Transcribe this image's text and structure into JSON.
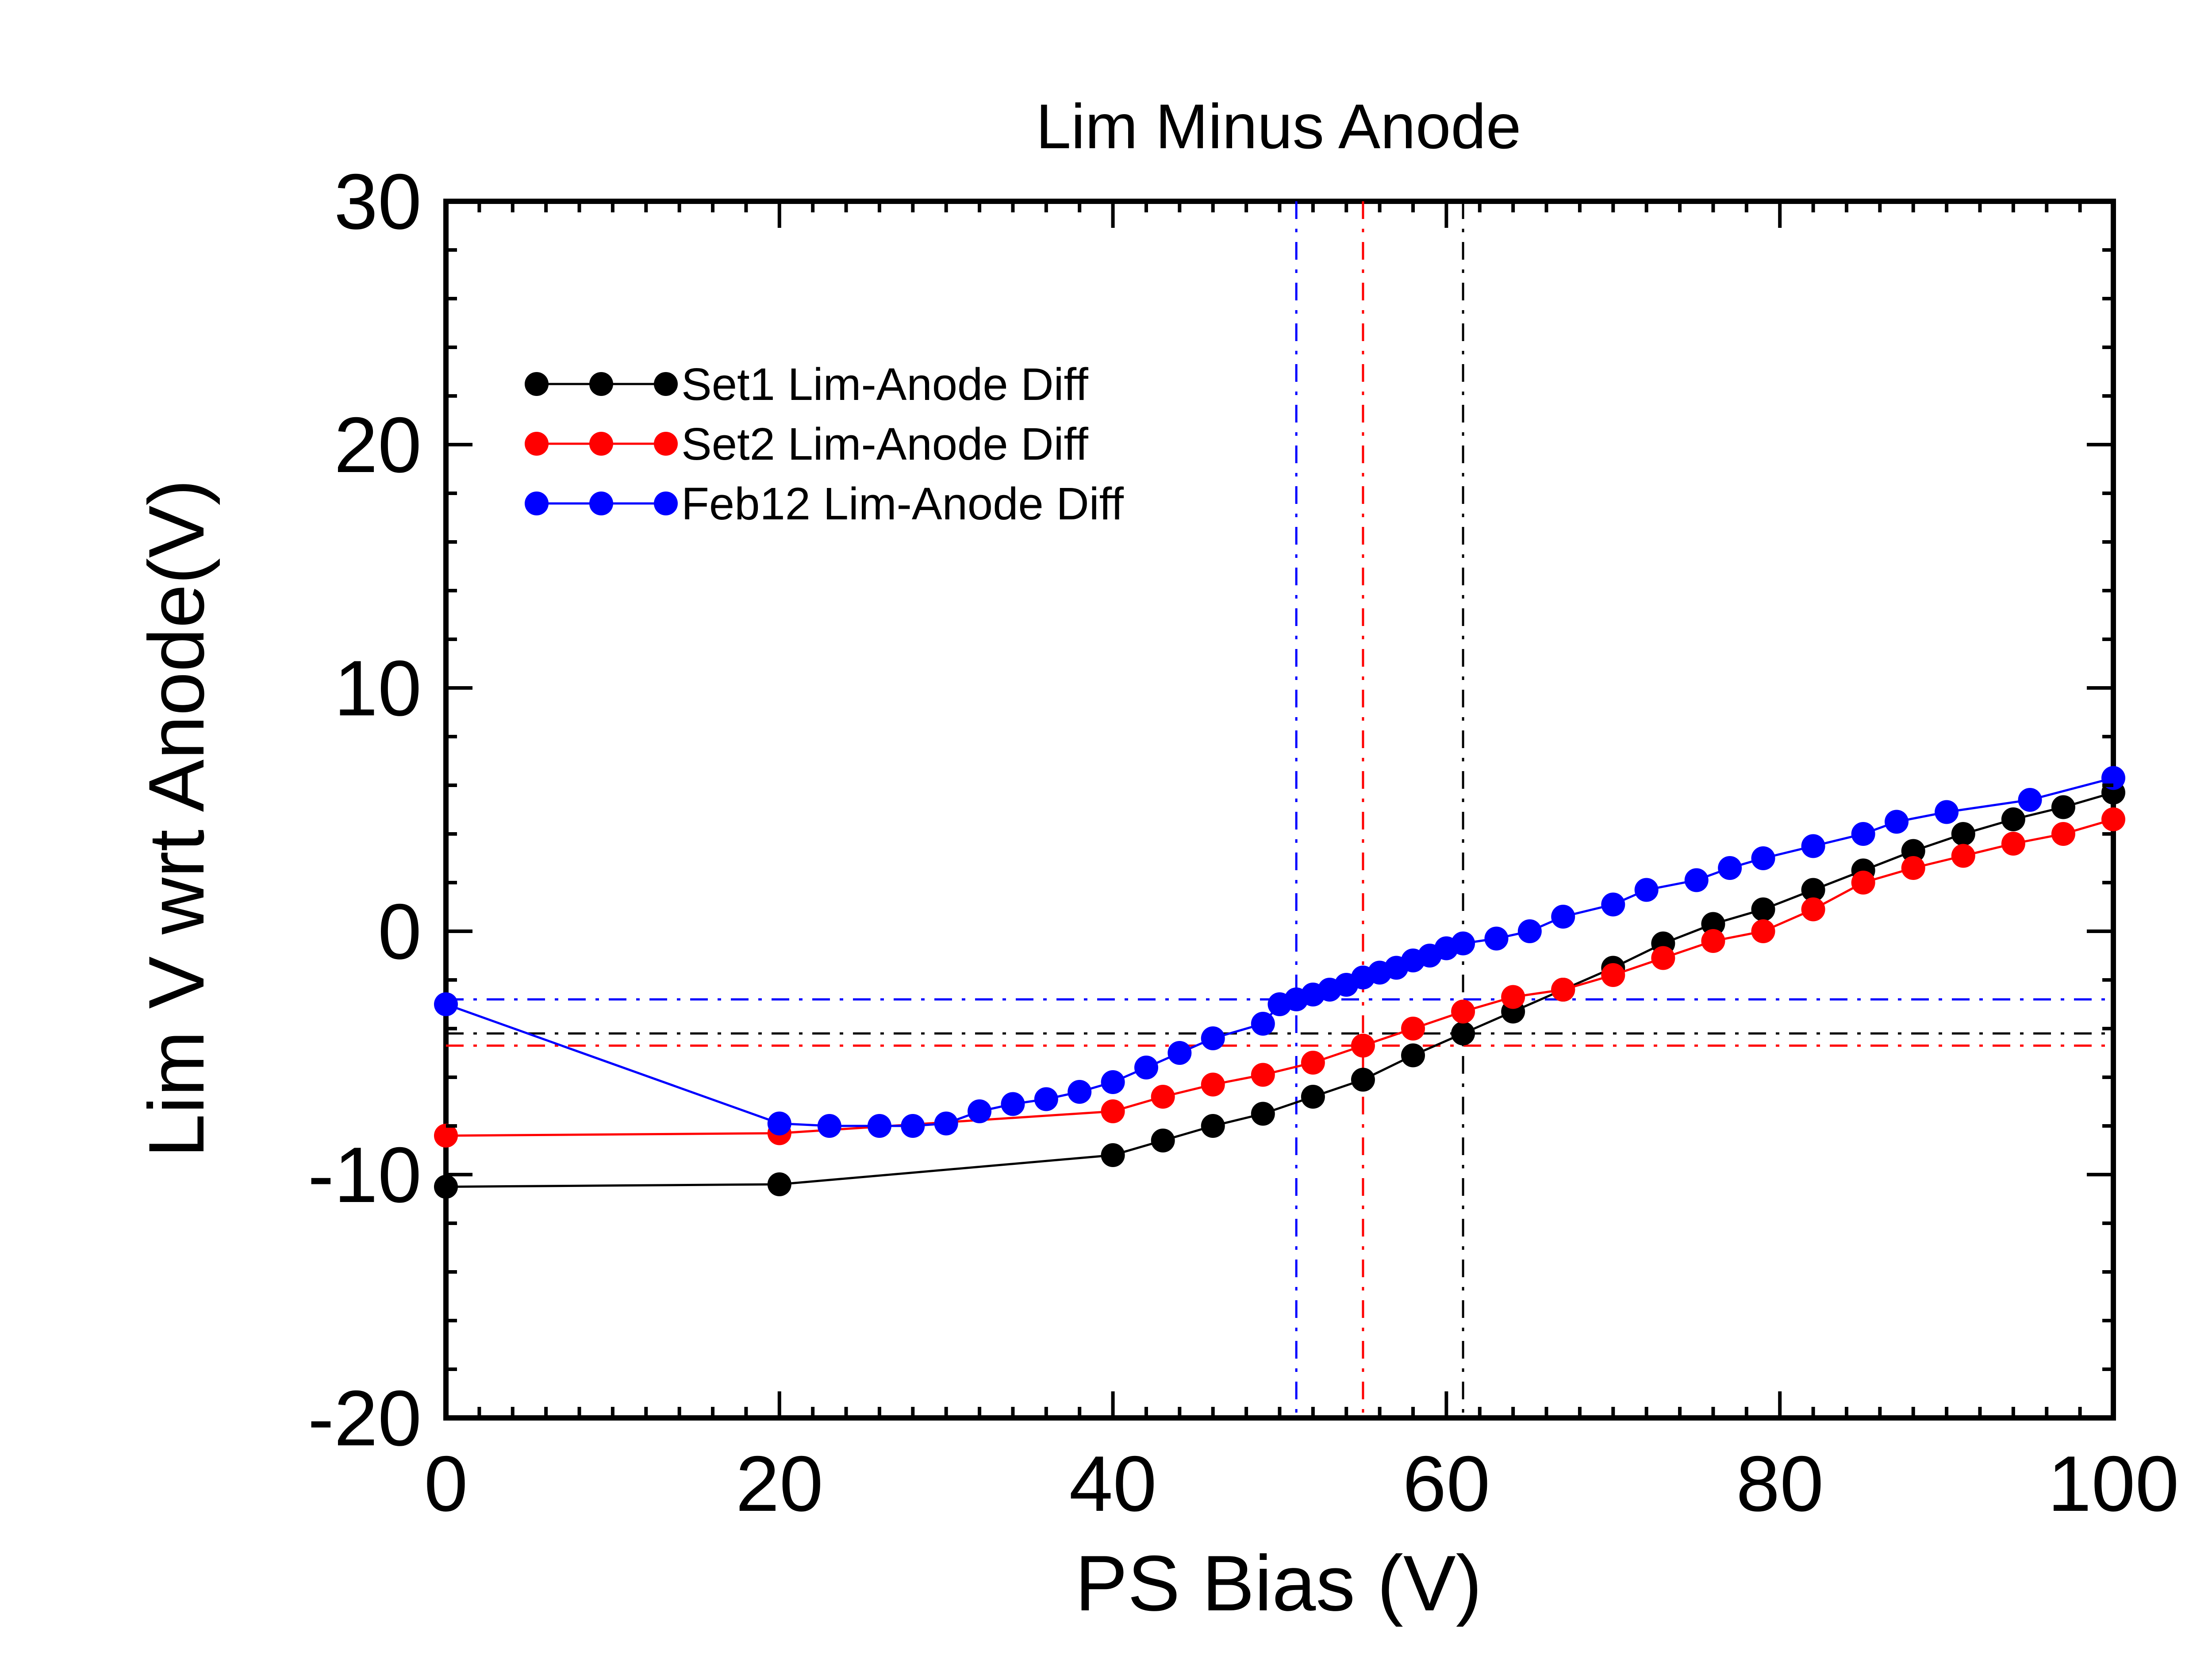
{
  "chart_data": {
    "type": "scatter",
    "title": "Lim Minus Anode",
    "xlabel": "PS Bias (V)",
    "ylabel": "Lim V wrt Anode(V)",
    "xlim": [
      0,
      100
    ],
    "ylim": [
      -20,
      30
    ],
    "xticks": [
      0,
      20,
      40,
      60,
      80,
      100
    ],
    "yticks": [
      -20,
      -10,
      0,
      10,
      20,
      30
    ],
    "xtick_labels": [
      "0",
      "20",
      "40",
      "60",
      "80",
      "100"
    ],
    "ytick_labels": [
      "-20",
      "-10",
      "0",
      "10",
      "20",
      "30"
    ],
    "grid": false,
    "legend_position": "top-left",
    "series": [
      {
        "name": "Set1 Lim-Anode Diff",
        "color": "#000000",
        "x": [
          0,
          20,
          40,
          43,
          46,
          49,
          52,
          55,
          58,
          61,
          64,
          67,
          70,
          73,
          76,
          79,
          82,
          85,
          88,
          91,
          94,
          97,
          100
        ],
        "y": [
          -10.5,
          -10.4,
          -9.2,
          -8.6,
          -8.0,
          -7.5,
          -6.8,
          -6.1,
          -5.1,
          -4.2,
          -3.3,
          -2.4,
          -1.5,
          -0.5,
          0.3,
          0.9,
          1.7,
          2.5,
          3.3,
          4.0,
          4.6,
          5.1,
          5.7
        ],
        "crosshair": {
          "x": 61,
          "y": -4.2
        }
      },
      {
        "name": "Set2 Lim-Anode Diff",
        "color": "#ff0000",
        "x": [
          0,
          20,
          40,
          43,
          46,
          49,
          52,
          55,
          58,
          61,
          64,
          67,
          70,
          73,
          76,
          79,
          82,
          85,
          88,
          91,
          94,
          97,
          100
        ],
        "y": [
          -8.4,
          -8.3,
          -7.4,
          -6.8,
          -6.3,
          -5.9,
          -5.4,
          -4.7,
          -4.0,
          -3.3,
          -2.7,
          -2.4,
          -1.8,
          -1.1,
          -0.4,
          0.0,
          0.9,
          2.0,
          2.6,
          3.1,
          3.6,
          4.0,
          4.6
        ],
        "crosshair": {
          "x": 55,
          "y": -4.7
        }
      },
      {
        "name": "Feb12 Lim-Anode Diff",
        "color": "#0000ff",
        "x": [
          0,
          20,
          23,
          26,
          28,
          30,
          32,
          34,
          36,
          38,
          40,
          42,
          44,
          46,
          49,
          50,
          51,
          52,
          53,
          54,
          55,
          56,
          57,
          58,
          59,
          60,
          61,
          63,
          65,
          67,
          70,
          72,
          75,
          77,
          79,
          82,
          85,
          87,
          90,
          95,
          100
        ],
        "y": [
          -3.0,
          -7.9,
          -8.0,
          -8.0,
          -8.0,
          -7.9,
          -7.4,
          -7.1,
          -6.9,
          -6.6,
          -6.2,
          -5.6,
          -5.0,
          -4.4,
          -3.8,
          -3.0,
          -2.8,
          -2.6,
          -2.4,
          -2.2,
          -1.9,
          -1.7,
          -1.5,
          -1.2,
          -1.0,
          -0.7,
          -0.5,
          -0.3,
          0.0,
          0.6,
          1.1,
          1.7,
          2.1,
          2.6,
          3.0,
          3.5,
          4.0,
          4.5,
          4.9,
          5.4,
          6.3
        ],
        "crosshair": {
          "x": 51,
          "y": -2.8
        }
      }
    ]
  }
}
